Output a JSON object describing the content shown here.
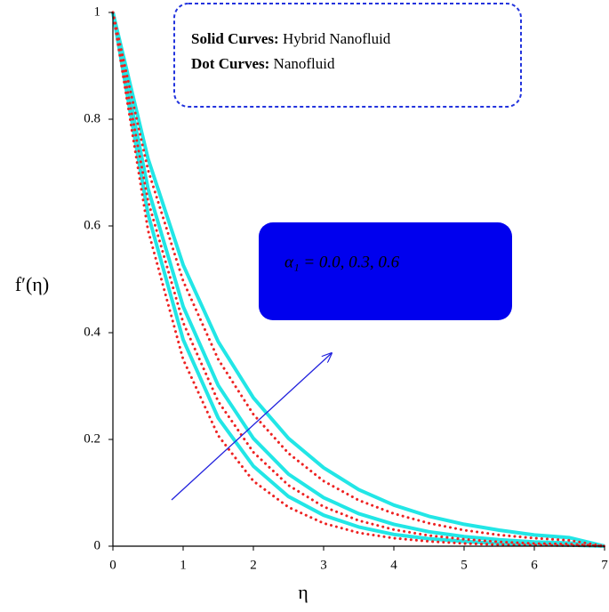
{
  "chart_data": {
    "type": "line",
    "x": [
      0,
      0.5,
      1,
      1.5,
      2,
      2.5,
      3,
      3.5,
      4,
      4.5,
      5,
      5.5,
      6,
      6.5,
      7
    ],
    "series": [
      {
        "color": "#22e6e6",
        "style": "solid",
        "values": [
          1,
          0.726,
          0.527,
          0.383,
          0.278,
          0.202,
          0.147,
          0.106,
          0.077,
          0.056,
          0.041,
          0.03,
          0.021,
          0.016,
          0
        ]
      },
      {
        "color": "#22e6e6",
        "style": "solid",
        "values": [
          1,
          0.67,
          0.449,
          0.301,
          0.202,
          0.135,
          0.091,
          0.061,
          0.041,
          0.027,
          0.018,
          0.012,
          0.008,
          0.006,
          0
        ]
      },
      {
        "color": "#22e6e6",
        "style": "solid",
        "values": [
          1,
          0.622,
          0.387,
          0.24,
          0.15,
          0.093,
          0.058,
          0.036,
          0.022,
          0.014,
          0.009,
          0.005,
          0.003,
          0.002,
          0
        ]
      },
      {
        "color": "#ee2222",
        "style": "dotted",
        "values": [
          1,
          0.705,
          0.497,
          0.35,
          0.247,
          0.174,
          0.122,
          0.086,
          0.061,
          0.043,
          0.03,
          0.021,
          0.015,
          0.011,
          0
        ]
      },
      {
        "color": "#ee2222",
        "style": "dotted",
        "values": [
          1,
          0.647,
          0.419,
          0.271,
          0.176,
          0.114,
          0.074,
          0.048,
          0.031,
          0.02,
          0.013,
          0.008,
          0.005,
          0.004,
          0
        ]
      },
      {
        "color": "#ee2222",
        "style": "dotted",
        "values": [
          1,
          0.592,
          0.35,
          0.207,
          0.122,
          0.073,
          0.043,
          0.025,
          0.015,
          0.009,
          0.005,
          0.003,
          0.002,
          0.001,
          0
        ]
      }
    ],
    "xlim": [
      0,
      7
    ],
    "xticks": [
      0,
      1,
      2,
      3,
      4,
      5,
      6,
      7
    ],
    "ylim": [
      0,
      1
    ],
    "yticks": [
      0,
      0.2,
      0.4,
      0.6,
      0.8,
      1
    ],
    "x_label": "η",
    "y_label": "f′(η)",
    "legend_box": {
      "solid_key": "Solid Curves:",
      "solid_text": "Hybrid Nanofluid",
      "dot_key": "Dot Curves:",
      "dot_text": "Nanofluid"
    },
    "param_label": "α₁ = 0.0, 0.3, 0.6"
  }
}
